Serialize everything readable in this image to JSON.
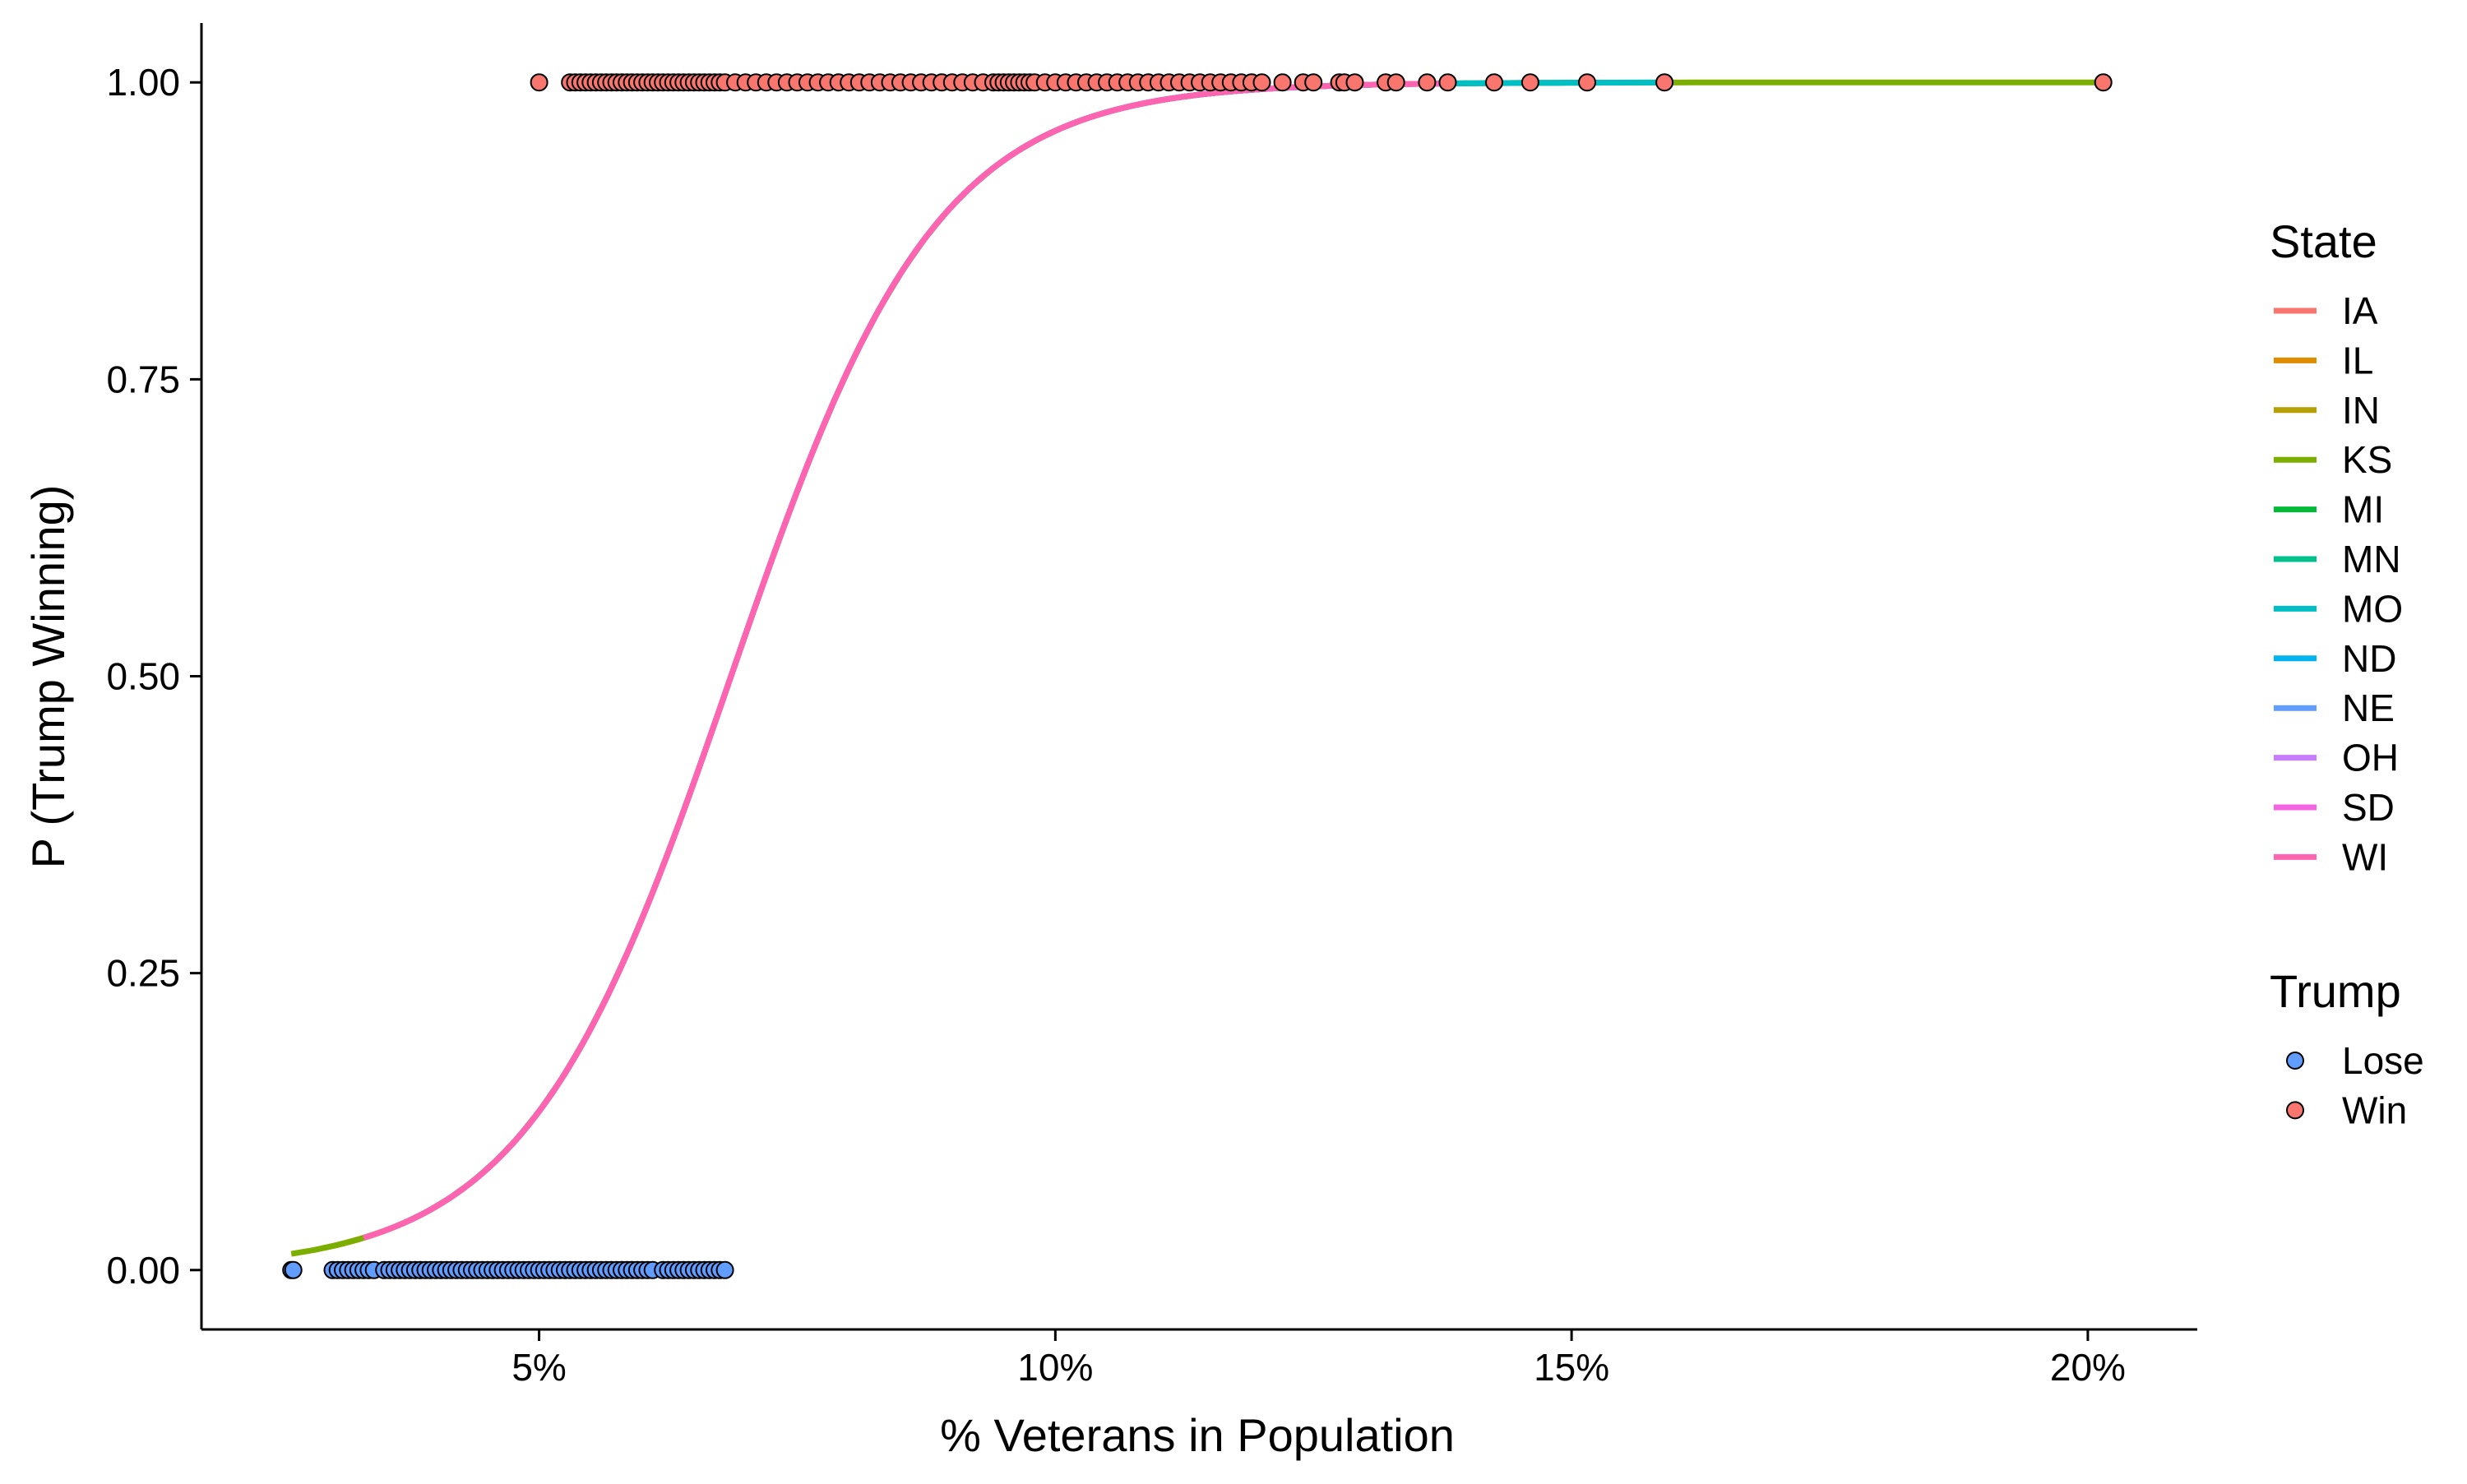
{
  "chart_data": {
    "type": "scatter",
    "xlabel": "% Veterans in Population",
    "ylabel": "P (Trump Winning)",
    "xlim": [
      0.0173,
      0.2106
    ],
    "ylim": [
      -0.05,
      1.05
    ],
    "x_ticks": [
      {
        "value": 0.05,
        "label": "5%"
      },
      {
        "value": 0.1,
        "label": "10%"
      },
      {
        "value": 0.15,
        "label": "15%"
      },
      {
        "value": 0.2,
        "label": "20%"
      }
    ],
    "y_ticks": [
      {
        "value": 0.0,
        "label": "0.00"
      },
      {
        "value": 0.25,
        "label": "0.25"
      },
      {
        "value": 0.5,
        "label": "0.50"
      },
      {
        "value": 0.75,
        "label": "0.75"
      },
      {
        "value": 1.0,
        "label": "1.00"
      }
    ],
    "grid": false,
    "legend_position": "right",
    "legends": [
      {
        "title": "State",
        "kind": "line",
        "entries": [
          {
            "label": "IA",
            "color": "#F8766D"
          },
          {
            "label": "IL",
            "color": "#DE8C00"
          },
          {
            "label": "IN",
            "color": "#B79F00"
          },
          {
            "label": "KS",
            "color": "#7CAE00"
          },
          {
            "label": "MI",
            "color": "#00BA38"
          },
          {
            "label": "MN",
            "color": "#00C08B"
          },
          {
            "label": "MO",
            "color": "#00BFC4"
          },
          {
            "label": "ND",
            "color": "#00B4F0"
          },
          {
            "label": "NE",
            "color": "#619CFF"
          },
          {
            "label": "OH",
            "color": "#C77CFF"
          },
          {
            "label": "SD",
            "color": "#F564E3"
          },
          {
            "label": "WI",
            "color": "#FF64B0"
          }
        ]
      },
      {
        "title": "Trump",
        "kind": "point",
        "entries": [
          {
            "label": "Lose",
            "color": "#619CFF"
          },
          {
            "label": "Win",
            "color": "#F8766D"
          }
        ]
      }
    ],
    "points": {
      "lose": {
        "y": 0,
        "color": "#619CFF",
        "x": [
          0.026,
          0.0262,
          0.03,
          0.0305,
          0.031,
          0.0315,
          0.032,
          0.0325,
          0.033,
          0.0335,
          0.034,
          0.035,
          0.0355,
          0.036,
          0.0365,
          0.037,
          0.0375,
          0.038,
          0.0385,
          0.039,
          0.0395,
          0.04,
          0.0405,
          0.041,
          0.0415,
          0.042,
          0.0425,
          0.043,
          0.0435,
          0.044,
          0.0445,
          0.045,
          0.0455,
          0.046,
          0.0465,
          0.047,
          0.0475,
          0.048,
          0.0485,
          0.049,
          0.0495,
          0.05,
          0.0505,
          0.051,
          0.0515,
          0.052,
          0.0525,
          0.053,
          0.0535,
          0.054,
          0.0545,
          0.055,
          0.0555,
          0.056,
          0.0565,
          0.057,
          0.0575,
          0.058,
          0.0585,
          0.059,
          0.0595,
          0.06,
          0.0605,
          0.061,
          0.062,
          0.0625,
          0.063,
          0.0635,
          0.064,
          0.0645,
          0.065,
          0.0655,
          0.066,
          0.0665,
          0.067,
          0.0675,
          0.068
        ]
      },
      "win": {
        "y": 1,
        "color": "#F8766D",
        "x": [
          0.05,
          0.053,
          0.0535,
          0.054,
          0.0545,
          0.055,
          0.0555,
          0.056,
          0.0565,
          0.057,
          0.0575,
          0.058,
          0.0585,
          0.059,
          0.0595,
          0.06,
          0.0605,
          0.061,
          0.0615,
          0.062,
          0.0625,
          0.063,
          0.0635,
          0.064,
          0.0645,
          0.065,
          0.0655,
          0.066,
          0.0665,
          0.067,
          0.0675,
          0.068,
          0.069,
          0.07,
          0.071,
          0.072,
          0.073,
          0.074,
          0.075,
          0.076,
          0.077,
          0.078,
          0.079,
          0.08,
          0.081,
          0.082,
          0.083,
          0.084,
          0.085,
          0.086,
          0.087,
          0.088,
          0.089,
          0.09,
          0.091,
          0.092,
          0.093,
          0.094,
          0.0945,
          0.095,
          0.0955,
          0.096,
          0.0965,
          0.097,
          0.0975,
          0.098,
          0.099,
          0.1,
          0.101,
          0.102,
          0.103,
          0.104,
          0.105,
          0.106,
          0.107,
          0.108,
          0.109,
          0.11,
          0.111,
          0.112,
          0.113,
          0.114,
          0.115,
          0.116,
          0.117,
          0.118,
          0.119,
          0.12,
          0.122,
          0.124,
          0.125,
          0.1275,
          0.128,
          0.129,
          0.132,
          0.133,
          0.136,
          0.138,
          0.1425,
          0.146,
          0.1515,
          0.159,
          0.2015
        ]
      }
    },
    "logistic_model": {
      "intercept": -6.9,
      "slope_per_unit": 100.6
    },
    "series": [
      {
        "name": "IA",
        "color": "#F8766D",
        "x_range": [
          0.032,
          0.128
        ]
      },
      {
        "name": "IL",
        "color": "#DE8C00",
        "x_range": [
          0.03,
          0.108
        ]
      },
      {
        "name": "IN",
        "color": "#B79F00",
        "x_range": [
          0.029,
          0.128
        ]
      },
      {
        "name": "KS",
        "color": "#7CAE00",
        "x_range": [
          0.026,
          0.2015
        ]
      },
      {
        "name": "MI",
        "color": "#00BA38",
        "x_range": [
          0.04,
          0.14
        ]
      },
      {
        "name": "MN",
        "color": "#00C08B",
        "x_range": [
          0.037,
          0.151
        ]
      },
      {
        "name": "MO",
        "color": "#00BFC4",
        "x_range": [
          0.04,
          0.159
        ]
      },
      {
        "name": "ND",
        "color": "#00B4F0",
        "x_range": [
          0.045,
          0.132
        ]
      },
      {
        "name": "NE",
        "color": "#619CFF",
        "x_range": [
          0.037,
          0.127
        ]
      },
      {
        "name": "OH",
        "color": "#C77CFF",
        "x_range": [
          0.037,
          0.113
        ]
      },
      {
        "name": "SD",
        "color": "#F564E3",
        "x_range": [
          0.035,
          0.138
        ]
      },
      {
        "name": "WI",
        "color": "#FF64B0",
        "x_range": [
          0.033,
          0.137
        ]
      }
    ]
  }
}
